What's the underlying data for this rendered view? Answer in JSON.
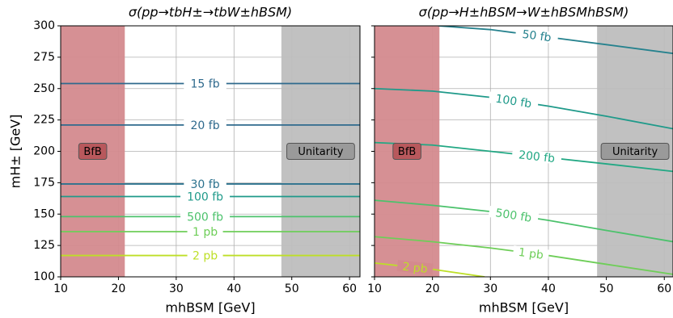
{
  "chart_data": [
    {
      "type": "contour",
      "title": "σ(pp→tbH±→tbW±hBSM)",
      "xlabel": "mhBSM [GeV]",
      "ylabel": "mH± [GeV]",
      "xlim": [
        10,
        61.8
      ],
      "ylim": [
        100,
        300
      ],
      "xticks": [
        10,
        20,
        30,
        40,
        50,
        60
      ],
      "yticks": [
        100,
        125,
        150,
        175,
        200,
        225,
        250,
        275,
        300
      ],
      "grid": true,
      "regions": [
        {
          "label": "BfB",
          "xlim": [
            10,
            21.1
          ],
          "color": "#d48a8e"
        },
        {
          "label": "Unitarity",
          "xlim": [
            48.2,
            61.8
          ],
          "color": "#bebebe"
        }
      ],
      "series": [
        {
          "name": "15 fb",
          "color": "#2f6a8d",
          "x": [
            10,
            61.8
          ],
          "values": [
            254,
            254
          ]
        },
        {
          "name": "20 fb",
          "color": "#2f6a8d",
          "x": [
            10,
            61.8
          ],
          "values": [
            221,
            221
          ]
        },
        {
          "name": "30 fb",
          "color": "#2c728e",
          "x": [
            10,
            61.8
          ],
          "values": [
            174,
            174
          ]
        },
        {
          "name": "100 fb",
          "color": "#1f9a8a",
          "x": [
            10,
            61.8
          ],
          "values": [
            164,
            164
          ]
        },
        {
          "name": "500 fb",
          "color": "#4cc26c",
          "x": [
            10,
            61.8
          ],
          "values": [
            148,
            148
          ]
        },
        {
          "name": "1 pb",
          "color": "#6ece58",
          "x": [
            10,
            61.8
          ],
          "values": [
            136,
            136
          ]
        },
        {
          "name": "2 pb",
          "color": "#bddf26",
          "x": [
            10,
            61.8
          ],
          "values": [
            117,
            117
          ]
        }
      ]
    },
    {
      "type": "contour",
      "title": "σ(pp→H±hBSM→W±hBSMhBSM)",
      "xlabel": "mhBSM [GeV]",
      "xlim": [
        10,
        61.5
      ],
      "ylim": [
        100,
        300
      ],
      "xticks": [
        10,
        20,
        30,
        40,
        50,
        60
      ],
      "yticks": [
        100,
        125,
        150,
        175,
        200,
        225,
        250,
        275,
        300
      ],
      "grid": true,
      "regions": [
        {
          "label": "BfB",
          "xlim": [
            10,
            21.2
          ],
          "color": "#d48a8e"
        },
        {
          "label": "Unitarity",
          "xlim": [
            48.4,
            61.5
          ],
          "color": "#bebebe"
        }
      ],
      "series": [
        {
          "name": "50 fb",
          "color": "#26828e",
          "x": [
            21,
            30,
            40,
            50,
            61.5
          ],
          "values": [
            300,
            297,
            291,
            285,
            278
          ]
        },
        {
          "name": "100 fb",
          "color": "#1f9a8a",
          "x": [
            10,
            20,
            30,
            40,
            50,
            61.5
          ],
          "values": [
            250,
            248,
            243,
            236,
            228,
            218
          ]
        },
        {
          "name": "200 fb",
          "color": "#22a884",
          "x": [
            10,
            20,
            30,
            40,
            50,
            61.5
          ],
          "values": [
            207,
            205,
            200,
            195,
            190,
            184
          ]
        },
        {
          "name": "500 fb",
          "color": "#4cc26c",
          "x": [
            10,
            20,
            30,
            40,
            50,
            61.5
          ],
          "values": [
            161,
            157,
            152,
            145,
            137,
            128
          ]
        },
        {
          "name": "1 pb",
          "color": "#6ece58",
          "x": [
            10,
            20,
            30,
            40,
            50,
            61.5
          ],
          "values": [
            132,
            128,
            123,
            117,
            110,
            102
          ]
        },
        {
          "name": "2 pb",
          "color": "#bddf26",
          "x": [
            10,
            20,
            29
          ],
          "values": [
            111,
            106,
            100
          ]
        }
      ]
    }
  ]
}
